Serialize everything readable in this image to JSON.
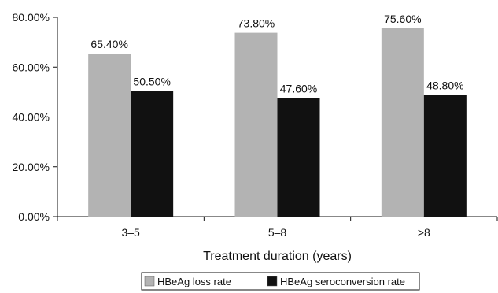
{
  "chart_data": {
    "type": "bar",
    "title": "",
    "xlabel": "Treatment duration (years)",
    "ylabel": "",
    "ylim": [
      0,
      80
    ],
    "yticks": [
      0,
      20,
      40,
      60,
      80
    ],
    "ytick_labels": [
      "0.00%",
      "20.00%",
      "40.00%",
      "60.00%",
      "80.00%"
    ],
    "categories": [
      "3–5",
      "5–8",
      ">8"
    ],
    "series": [
      {
        "name": "HBeAg loss rate",
        "color": "#b3b3b3",
        "values": [
          65.4,
          73.8,
          75.6
        ],
        "labels": [
          "65.40%",
          "73.80%",
          "75.60%"
        ]
      },
      {
        "name": "HBeAg seroconversion rate",
        "color": "#111111",
        "values": [
          50.5,
          47.6,
          48.8
        ],
        "labels": [
          "50.50%",
          "47.60%",
          "48.80%"
        ]
      }
    ],
    "grid": false,
    "legend_position": "bottom"
  }
}
